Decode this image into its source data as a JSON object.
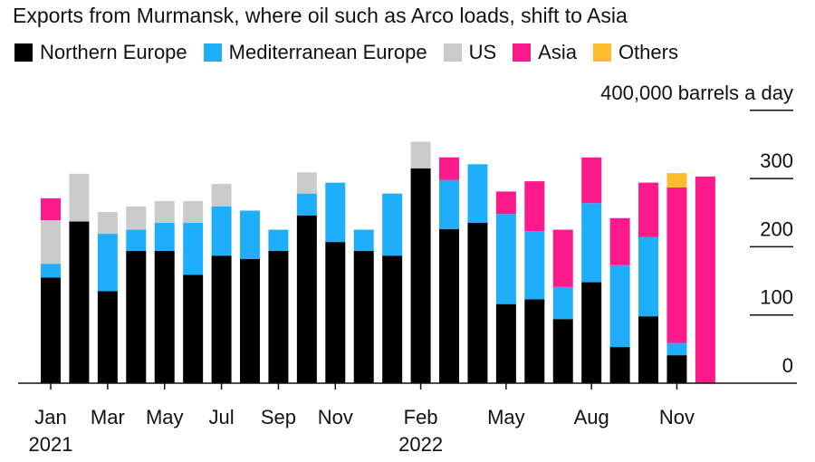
{
  "chart_data": {
    "type": "bar",
    "stacked": true,
    "title": "Exports from Murmansk, where oil such as Arco loads, shift to Asia",
    "ylabel": "400,000 barrels a day",
    "ylim": [
      0,
      400
    ],
    "yticks": [
      0,
      100,
      200,
      300,
      400
    ],
    "ytick_labels": [
      "0",
      "100",
      "200",
      "300",
      "400,000 barrels a day"
    ],
    "categories": [
      "Jan 2021",
      "Feb 2021",
      "Mar 2021",
      "Apr 2021",
      "May 2021",
      "Jun 2021",
      "Jul 2021",
      "Aug 2021",
      "Sep 2021",
      "Oct 2021",
      "Nov 2021",
      "Dec 2021",
      "Jan 2022",
      "Feb 2022",
      "Mar 2022",
      "Apr 2022",
      "May 2022",
      "Jun 2022",
      "Jul 2022",
      "Aug 2022",
      "Sep 2022",
      "Oct 2022",
      "Nov 2022",
      "Dec 2022"
    ],
    "xtick_labels": [
      {
        "index": 0,
        "label": "Jan",
        "sub": "2021"
      },
      {
        "index": 2,
        "label": "Mar"
      },
      {
        "index": 4,
        "label": "May"
      },
      {
        "index": 6,
        "label": "Jul"
      },
      {
        "index": 8,
        "label": "Sep"
      },
      {
        "index": 10,
        "label": "Nov"
      },
      {
        "index": 13,
        "label": "Feb",
        "sub": "2022"
      },
      {
        "index": 16,
        "label": "May"
      },
      {
        "index": 19,
        "label": "Aug"
      },
      {
        "index": 22,
        "label": "Nov"
      }
    ],
    "legend_position": "top-left",
    "series": [
      {
        "name": "Northern Europe",
        "color": "#000000",
        "values": [
          155,
          237,
          135,
          194,
          194,
          159,
          187,
          182,
          194,
          246,
          207,
          194,
          187,
          315,
          226,
          235,
          116,
          123,
          94,
          148,
          53,
          98,
          41,
          0
        ]
      },
      {
        "name": "Mediterranean Europe",
        "color": "#1eaefc",
        "values": [
          20,
          0,
          84,
          31,
          41,
          76,
          72,
          71,
          31,
          32,
          87,
          31,
          91,
          0,
          72,
          86,
          132,
          100,
          47,
          116,
          120,
          116,
          18,
          0
        ]
      },
      {
        "name": "US",
        "color": "#cbcbcd",
        "values": [
          64,
          70,
          32,
          34,
          32,
          32,
          33,
          0,
          0,
          31,
          0,
          0,
          0,
          39,
          0,
          0,
          0,
          0,
          0,
          0,
          0,
          0,
          0,
          0
        ]
      },
      {
        "name": "Asia",
        "color": "#ff1a8c",
        "values": [
          32,
          0,
          0,
          0,
          0,
          0,
          0,
          0,
          0,
          0,
          0,
          0,
          0,
          0,
          33,
          0,
          33,
          73,
          84,
          67,
          69,
          80,
          228,
          303
        ]
      },
      {
        "name": "Others",
        "color": "#fdbe2d",
        "values": [
          0,
          0,
          0,
          0,
          0,
          0,
          0,
          0,
          0,
          0,
          0,
          0,
          0,
          0,
          0,
          0,
          0,
          0,
          0,
          0,
          0,
          0,
          21,
          0
        ]
      }
    ]
  }
}
